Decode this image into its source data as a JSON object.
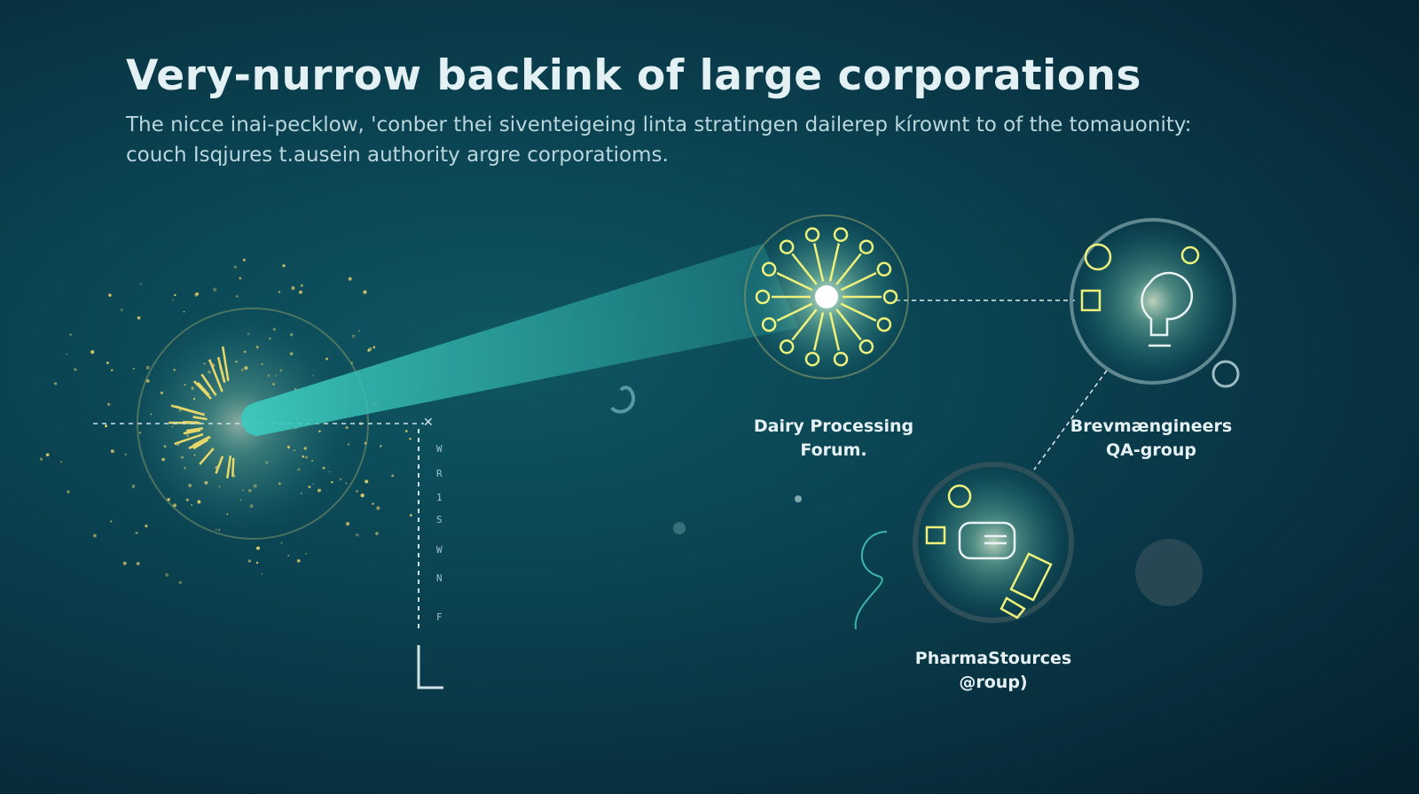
{
  "title": "Very-nurrow backink of large corporations",
  "subtitle": [
    "The nicce inai-pecklow, 'conber thei siventeigeing linta stratingen dailerep kírownt to of the tomauonity:",
    "couch Isqjures t.ausein authority argre corporatioms."
  ],
  "nodes": [
    {
      "label": [
        "Dairy Processing",
        "Forum."
      ],
      "icon": "network-burst-icon"
    },
    {
      "label": [
        "Brevmængineers",
        "QA-group"
      ],
      "icon": "lightbulb-icon"
    },
    {
      "label": [
        "PharmaStources",
        "@roup)"
      ],
      "icon": "chat-bubble-icon"
    }
  ],
  "axis_letters": [
    "W",
    "R",
    "1",
    "S",
    "W",
    "N",
    "F"
  ],
  "colors": {
    "accent": "#e8e86a",
    "beam": "#3cc9bd",
    "background": "#0b4453"
  }
}
